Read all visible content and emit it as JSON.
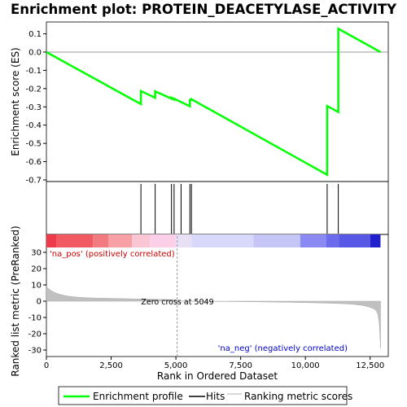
{
  "chart_data": {
    "type": "line",
    "title": "Enrichment plot: PROTEIN_DEACETYLASE_ACTIVITY",
    "top_panel": {
      "ylabel": "Enrichment score (ES)",
      "ylim": [
        -0.7,
        0.16
      ],
      "yticks": [
        "0.1",
        "0.0",
        "-0.1",
        "-0.2",
        "-0.3",
        "-0.4",
        "-0.5",
        "-0.6",
        "-0.7"
      ],
      "ytick_values": [
        0.1,
        0.0,
        -0.1,
        -0.2,
        -0.3,
        -0.4,
        -0.5,
        -0.6,
        -0.7
      ],
      "series": [
        {
          "name": "Enrichment profile",
          "color": "#00ff00",
          "x": [
            0,
            3650,
            3650,
            4200,
            4200,
            4830,
            4830,
            4930,
            4930,
            5540,
            5540,
            5600,
            5600,
            10840,
            10840,
            11270,
            11270,
            12900
          ],
          "y": [
            0.0,
            -0.285,
            -0.213,
            -0.25,
            -0.215,
            -0.255,
            -0.25,
            -0.26,
            -0.255,
            -0.297,
            -0.262,
            -0.262,
            -0.258,
            -0.672,
            -0.295,
            -0.328,
            0.128,
            0.0
          ]
        }
      ]
    },
    "hits": {
      "name": "Hits",
      "color": "#000000",
      "x": [
        3650,
        4200,
        4830,
        4930,
        5200,
        5540,
        5600,
        10840,
        11270
      ]
    },
    "ranked_metric": {
      "name": "Ranking metric scores",
      "ylabel": "Ranked list metric (PreRanked)",
      "ylim": [
        -32,
        35
      ],
      "yticks": [
        "30",
        "20",
        "10",
        "0",
        "-10",
        "-20",
        "-30"
      ],
      "ytick_values": [
        30,
        20,
        10,
        0,
        -10,
        -20,
        -30
      ],
      "zero_cross_label": "Zero cross at 5049",
      "zero_cross": 5049,
      "pos_label": "'na_pos' (positively correlated)",
      "neg_label": "'na_neg' (negatively correlated)",
      "color": "#c0c0c0"
    },
    "xaxis": {
      "xlabel": "Rank in Ordered Dataset",
      "xlim": [
        0,
        13200
      ],
      "xticks": [
        "0",
        "2,500",
        "5,000",
        "7,500",
        "10,000",
        "12,500"
      ],
      "xtick_values": [
        0,
        2500,
        5000,
        7500,
        10000,
        12500
      ],
      "n_genes": 12900
    },
    "colorbar": {
      "segments": [
        {
          "start": 0,
          "end": 400,
          "color": "#ee3a4a"
        },
        {
          "start": 400,
          "end": 1800,
          "color": "#f25a63"
        },
        {
          "start": 1800,
          "end": 2400,
          "color": "#f47a82"
        },
        {
          "start": 2400,
          "end": 3300,
          "color": "#f7a0a6"
        },
        {
          "start": 3300,
          "end": 4000,
          "color": "#fbc6d4"
        },
        {
          "start": 4000,
          "end": 5000,
          "color": "#fbcfe8"
        },
        {
          "start": 5000,
          "end": 5600,
          "color": "#eae0f6"
        },
        {
          "start": 5600,
          "end": 8000,
          "color": "#d8d8fa"
        },
        {
          "start": 8000,
          "end": 9800,
          "color": "#c6c6f6"
        },
        {
          "start": 9800,
          "end": 10800,
          "color": "#8a8af2"
        },
        {
          "start": 10800,
          "end": 11300,
          "color": "#6b6bee"
        },
        {
          "start": 11300,
          "end": 12500,
          "color": "#5858e6"
        },
        {
          "start": 12500,
          "end": 12900,
          "color": "#2020cc"
        }
      ]
    }
  },
  "legend": {
    "items": [
      {
        "label": "Enrichment profile",
        "color": "#00ff00"
      },
      {
        "label": "Hits",
        "color": "#000000"
      },
      {
        "label": "Ranking metric scores",
        "color": "#c0c0c0"
      }
    ]
  }
}
